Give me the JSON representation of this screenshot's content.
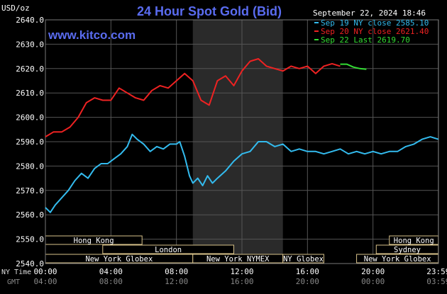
{
  "chart_data": {
    "type": "line",
    "title": "24 Hour Spot Gold (Bid)",
    "ylabel": "USD/oz",
    "ylim": [
      2540,
      2640
    ],
    "yticks": [
      2540,
      2550,
      2560,
      2570,
      2580,
      2590,
      2600,
      2610,
      2620,
      2630,
      2640
    ],
    "ytick_labels": [
      "2540.0",
      "2550.0",
      "2560.0",
      "2570.0",
      "2580.0",
      "2590.0",
      "2600.0",
      "2610.0",
      "2620.0",
      "2630.0",
      "2640.0"
    ],
    "x_hours_ny": [
      0,
      24
    ],
    "xtick_labels_ny": [
      "00:00",
      "04:00",
      "08:00",
      "12:00",
      "16:00",
      "20:00",
      "23:59"
    ],
    "xtick_labels_gmt": [
      "04:00",
      "08:00",
      "12:00",
      "16:00",
      "20:00",
      "00:00",
      "03:59"
    ],
    "x_row_labels": [
      "NY Time",
      "GMT"
    ],
    "header_date": "September 22, 2024 18:46",
    "legend_placement": "top-right",
    "grid": true,
    "shaded_interval_hours": [
      9,
      14.5
    ],
    "series": [
      {
        "name": "Sep 19 NY close 2585.10",
        "color": "#33bbee",
        "x": [
          0,
          0.3,
          0.6,
          1.0,
          1.4,
          1.8,
          2.2,
          2.6,
          3.0,
          3.4,
          3.8,
          4.2,
          4.6,
          5.0,
          5.3,
          5.6,
          6.0,
          6.4,
          6.8,
          7.2,
          7.6,
          8.0,
          8.2,
          8.5,
          8.8,
          9.0,
          9.3,
          9.6,
          9.9,
          10.2,
          10.5,
          11.0,
          11.5,
          12.0,
          12.5,
          13.0,
          13.5,
          14.0,
          14.5,
          15.0,
          15.5,
          16.0,
          16.5,
          17.0,
          17.5,
          18.0,
          18.5,
          19.0,
          19.5,
          20.0,
          20.5,
          21.0,
          21.5,
          22.0,
          22.5,
          23.0,
          23.5,
          23.99
        ],
        "values": [
          2563,
          2561,
          2564,
          2567,
          2570,
          2574,
          2577,
          2575,
          2579,
          2581,
          2581,
          2583,
          2585,
          2588,
          2593,
          2591,
          2589,
          2586,
          2588,
          2587,
          2589,
          2589,
          2590,
          2584,
          2576,
          2573,
          2575,
          2572,
          2576,
          2573,
          2575,
          2578,
          2582,
          2585,
          2586,
          2590,
          2590,
          2588,
          2589,
          2586,
          2587,
          2586,
          2586,
          2585,
          2586,
          2587,
          2585,
          2586,
          2585,
          2586,
          2585,
          2586,
          2586,
          2588,
          2589,
          2591,
          2592,
          2591
        ]
      },
      {
        "name": "Sep 20 NY close 2621.40",
        "color": "#ee2222",
        "x": [
          0,
          0.5,
          1.0,
          1.5,
          2.0,
          2.5,
          3.0,
          3.5,
          4.0,
          4.5,
          5.0,
          5.5,
          6.0,
          6.5,
          7.0,
          7.5,
          8.0,
          8.5,
          9.0,
          9.5,
          10.0,
          10.5,
          11.0,
          11.5,
          12.0,
          12.5,
          13.0,
          13.5,
          14.0,
          14.5,
          15.0,
          15.5,
          16.0,
          16.5,
          17.0,
          17.5,
          18.0
        ],
        "values": [
          2592,
          2594,
          2594,
          2596,
          2600,
          2606,
          2608,
          2607,
          2607,
          2612,
          2610,
          2608,
          2607,
          2611,
          2613,
          2612,
          2615,
          2618,
          2615,
          2607,
          2605,
          2615,
          2617,
          2613,
          2619,
          2623,
          2624,
          2621,
          2620,
          2619,
          2621,
          2620,
          2621,
          2618,
          2621,
          2622,
          2621
        ]
      },
      {
        "name": "Sep 22 Last 2619.70",
        "color": "#33dd33",
        "x": [
          18.0,
          18.4,
          18.8,
          19.2,
          19.6
        ],
        "values": [
          2621.8,
          2621.8,
          2620.6,
          2620.0,
          2619.7
        ]
      }
    ]
  },
  "site": "www.kitco.com",
  "sessions": {
    "row1": [
      {
        "label": "Hong Kong",
        "start": 0,
        "end": 5.9
      },
      {
        "label": "Hong Kong",
        "start": 21,
        "end": 23.99
      }
    ],
    "row2": [
      {
        "label": "London",
        "start": 3.5,
        "end": 11.5
      },
      {
        "label": "Sydney",
        "start": 20.2,
        "end": 23.99
      }
    ],
    "row3": [
      {
        "label": "New York Globex",
        "start": 0,
        "end": 9.0
      },
      {
        "label": "New York NYMEX",
        "start": 9.0,
        "end": 14.5
      },
      {
        "label": "NY Globex",
        "start": 14.5,
        "end": 17.0
      },
      {
        "label": "New York Globex",
        "start": 19.0,
        "end": 23.99
      }
    ]
  }
}
